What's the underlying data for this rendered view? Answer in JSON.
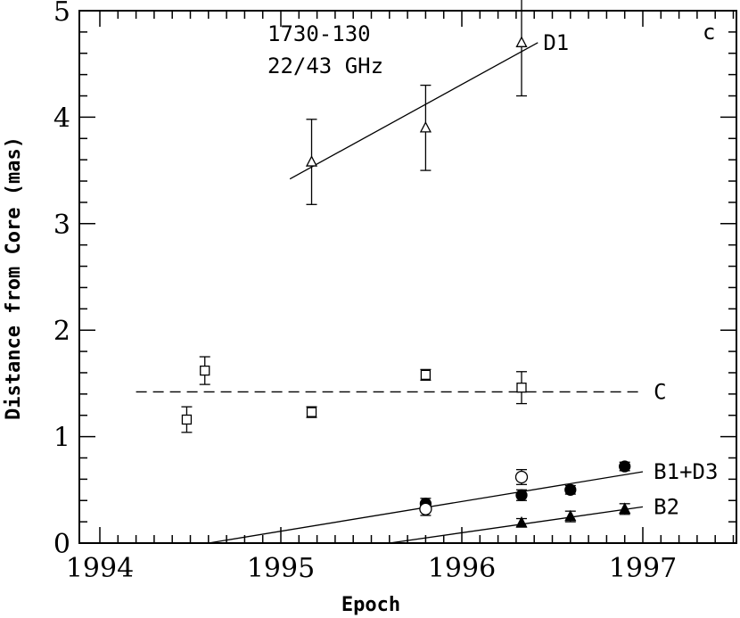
{
  "chart_data": {
    "type": "scatter",
    "title": "1730-130",
    "subtitle": "22/43 GHz",
    "panel_label": "c",
    "xlabel": "Epoch",
    "ylabel": "Distance from Core (mas)",
    "xlim": [
      1994,
      1997.5
    ],
    "ylim": [
      0,
      5
    ],
    "xticks": [
      1994,
      1995,
      1996,
      1997
    ],
    "yticks": [
      0,
      1,
      2,
      3,
      4,
      5
    ],
    "grid": false,
    "series": [
      {
        "name": "D1",
        "marker": "open-triangle",
        "points": [
          {
            "x": 1995.17,
            "y": 3.58,
            "err": 0.4
          },
          {
            "x": 1995.8,
            "y": 3.9,
            "err": 0.4
          },
          {
            "x": 1996.33,
            "y": 4.7,
            "err": 0.5
          }
        ],
        "fit": {
          "x": [
            1995.05,
            1996.42
          ],
          "y": [
            3.42,
            4.7
          ]
        }
      },
      {
        "name": "C",
        "marker": "open-square",
        "points": [
          {
            "x": 1994.48,
            "y": 1.16,
            "err": 0.12
          },
          {
            "x": 1994.58,
            "y": 1.62,
            "err": 0.13
          },
          {
            "x": 1995.17,
            "y": 1.23,
            "err": 0.05
          },
          {
            "x": 1995.8,
            "y": 1.58,
            "err": 0.05
          },
          {
            "x": 1996.33,
            "y": 1.46,
            "err": 0.15
          }
        ],
        "fit": {
          "x": [
            1994.2,
            1997.0
          ],
          "y": [
            1.42,
            1.42
          ],
          "style": "dashed"
        }
      },
      {
        "name": "B1+D3",
        "marker": "filled-circle",
        "points": [
          {
            "x": 1995.8,
            "y": 0.37,
            "err": 0.05
          },
          {
            "x": 1996.33,
            "y": 0.45,
            "err": 0.05
          },
          {
            "x": 1996.6,
            "y": 0.5,
            "err": 0.04
          },
          {
            "x": 1996.9,
            "y": 0.72,
            "err": 0.04
          }
        ],
        "fit": {
          "x": [
            1994.6,
            1997.0
          ],
          "y": [
            0.0,
            0.67
          ]
        }
      },
      {
        "name": "",
        "marker": "open-circle",
        "points": [
          {
            "x": 1995.8,
            "y": 0.32,
            "err": 0.06
          },
          {
            "x": 1996.33,
            "y": 0.62,
            "err": 0.07
          }
        ]
      },
      {
        "name": "B2",
        "marker": "filled-triangle",
        "points": [
          {
            "x": 1996.33,
            "y": 0.19,
            "err": 0.04
          },
          {
            "x": 1996.6,
            "y": 0.25,
            "err": 0.05
          },
          {
            "x": 1996.9,
            "y": 0.32,
            "err": 0.05
          }
        ],
        "fit": {
          "x": [
            1995.6,
            1997.0
          ],
          "y": [
            0.0,
            0.34
          ]
        }
      }
    ],
    "annotations": [
      {
        "text": "D1",
        "x": 1996.45,
        "y": 4.7
      },
      {
        "text": "C",
        "x": 1997.06,
        "y": 1.42
      },
      {
        "text": "B1+D3",
        "x": 1997.06,
        "y": 0.67
      },
      {
        "text": "B2",
        "x": 1997.06,
        "y": 0.34
      }
    ]
  }
}
